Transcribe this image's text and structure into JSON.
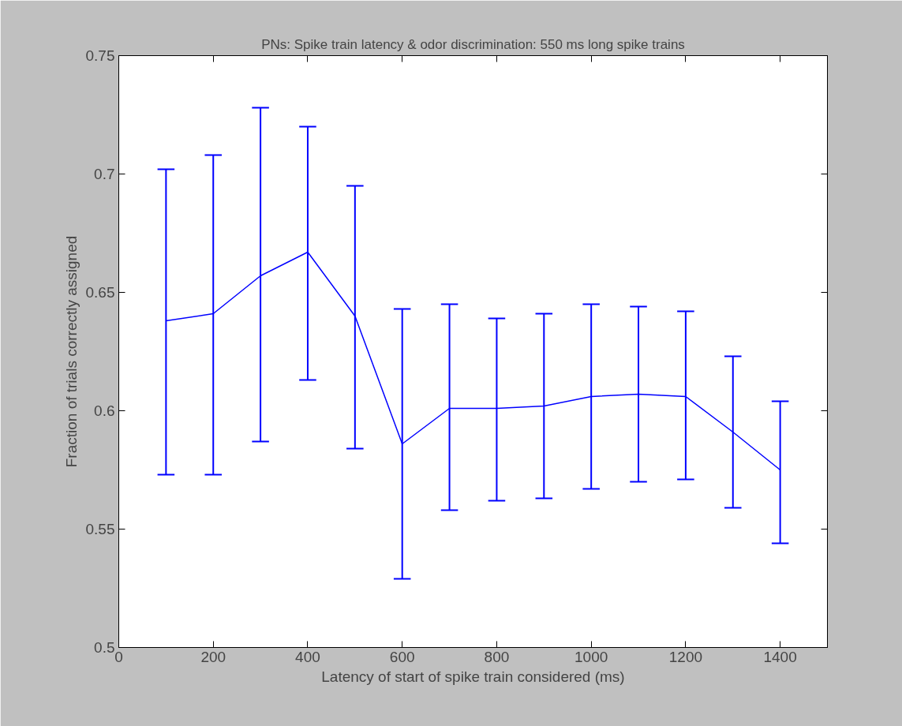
{
  "chart_data": {
    "type": "line",
    "title": "PNs: Spike train latency & odor discrimination: 550 ms long spike trains",
    "xlabel": "Latency of start of spike train considered (ms)",
    "ylabel": "Fraction of trials correctly assigned",
    "x": [
      100,
      200,
      300,
      400,
      500,
      600,
      700,
      800,
      900,
      1000,
      1100,
      1200,
      1300,
      1400
    ],
    "series": [
      {
        "color": "#0000ff",
        "values": [
          0.638,
          0.641,
          0.657,
          0.667,
          0.64,
          0.586,
          0.601,
          0.601,
          0.602,
          0.606,
          0.607,
          0.606,
          0.591,
          0.575
        ],
        "errors": [
          [
            0.573,
            0.702
          ],
          [
            0.573,
            0.708
          ],
          [
            0.587,
            0.728
          ],
          [
            0.613,
            0.72
          ],
          [
            0.584,
            0.695
          ],
          [
            0.529,
            0.643
          ],
          [
            0.558,
            0.645
          ],
          [
            0.562,
            0.639
          ],
          [
            0.563,
            0.641
          ],
          [
            0.567,
            0.645
          ],
          [
            0.57,
            0.644
          ],
          [
            0.571,
            0.642
          ],
          [
            0.559,
            0.623
          ],
          [
            0.544,
            0.604
          ]
        ]
      }
    ],
    "xlim": [
      0,
      1500
    ],
    "xticks": [
      0,
      200,
      400,
      600,
      800,
      1000,
      1200,
      1400
    ],
    "ylim": [
      0.5,
      0.75
    ],
    "yticks": [
      0.5,
      0.55,
      0.6,
      0.65,
      0.7,
      0.75
    ],
    "grid": false,
    "marker": "none",
    "line_style": "solid"
  }
}
